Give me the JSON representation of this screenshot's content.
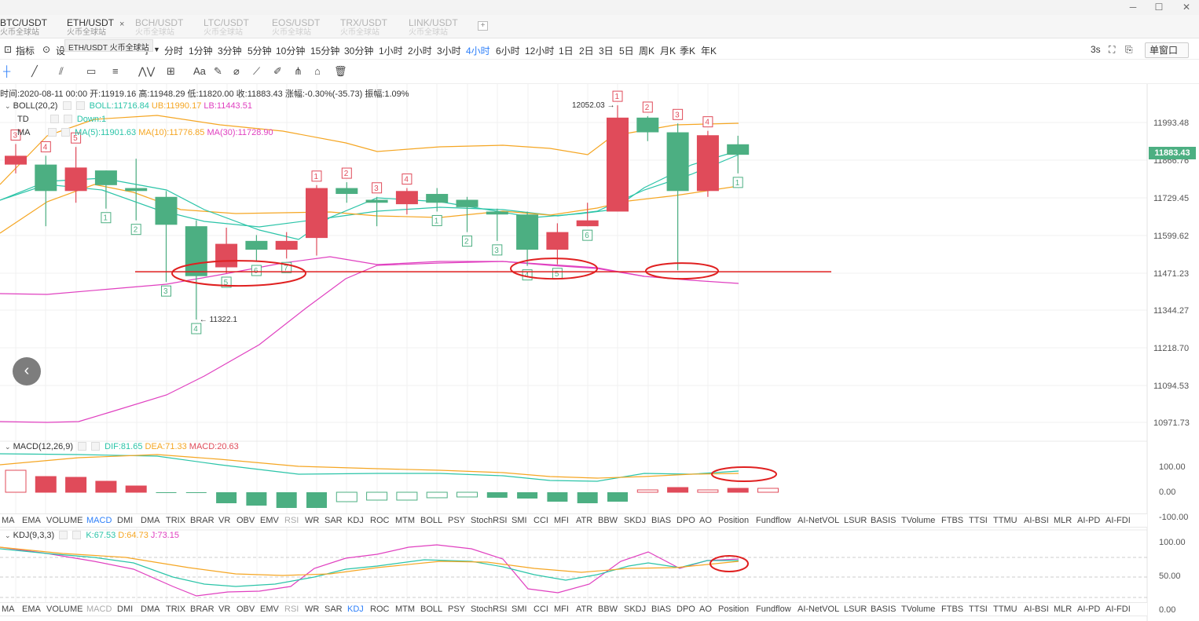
{
  "window": {
    "minimize": "─",
    "maximize": "☐",
    "close": "✕"
  },
  "tabs": [
    {
      "symbol": "BTC/USDT",
      "sub": "火币全球站",
      "dim": false
    },
    {
      "symbol": "ETH/USDT",
      "sub": "火币全球站",
      "dim": false,
      "closable": true
    },
    {
      "symbol": "BCH/USDT",
      "sub": "火币全球站",
      "dim": true
    },
    {
      "symbol": "LTC/USDT",
      "sub": "火币全球站",
      "dim": true
    },
    {
      "symbol": "EOS/USDT",
      "sub": "火币全球站",
      "dim": true
    },
    {
      "symbol": "TRX/USDT",
      "sub": "火币全球站",
      "dim": true
    },
    {
      "symbol": "LINK/USDT",
      "sub": "火币全球站",
      "dim": true
    }
  ],
  "tab_close": "×",
  "tab_add": "+",
  "tooltip": "ETH/USDT 火币全球站",
  "toolbar": {
    "indicator_label": "指标",
    "settings_label": "设",
    "settings_suffix": "]",
    "intervals": [
      "分时",
      "1分钟",
      "3分钟",
      "5分钟",
      "10分钟",
      "15分钟",
      "30分钟",
      "1小时",
      "2小时",
      "3小时",
      "4小时",
      "6小时",
      "12小时",
      "1日",
      "2日",
      "3日",
      "5日",
      "周K",
      "月K",
      "季K",
      "年K"
    ],
    "active_interval": "4小时",
    "refresh": "3s",
    "window_mode": "单窗口"
  },
  "drawing_tools": [
    "crosshair-icon",
    "line-icon",
    "fib-icon",
    "rect-icon",
    "channel-icon",
    "wave-icon",
    "grid-icon",
    "text-icon",
    "brush-icon",
    "eraser-icon",
    "ruler-icon",
    "measure-icon",
    "lock-icon",
    "trash-icon"
  ],
  "info_line": "时间:2020-08-11 00:00  开:11919.16  高:11948.29  低:11820.00  收:11883.43  涨幅:-0.30%(-35.73)  振幅:1.09%",
  "overlays": {
    "boll": {
      "name": "BOLL(20,2)",
      "boll": "BOLL:11716.84",
      "ub": "UB:11990.17",
      "lb": "LB:11443.51"
    },
    "td": {
      "name": "TD",
      "value": "Down:1"
    },
    "ma": {
      "name": "MA",
      "ma5": "MA(5):11901.63",
      "ma10": "MA(10):11776.85",
      "ma30": "MA(30):11728.90"
    }
  },
  "price_axis": [
    "11993.48",
    "11866.76",
    "11729.45",
    "11599.62",
    "11471.23",
    "11344.27",
    "11218.70",
    "11094.53",
    "10971.73"
  ],
  "last_price": "11883.43",
  "annotations": {
    "high": "12052.03",
    "low": "11322.1"
  },
  "macd": {
    "name": "MACD(12,26,9)",
    "dif": "DIF:81.65",
    "dea": "DEA:71.33",
    "macd": "MACD:20.63",
    "axis": [
      "100.00",
      "0.00",
      "-100.00"
    ]
  },
  "kdj": {
    "name": "KDJ(9,3,3)",
    "k": "K:67.53",
    "d": "D:64.73",
    "j": "J:73.15",
    "axis": [
      "100.00",
      "50.00",
      "0.00"
    ]
  },
  "indicator_tabs": [
    "MA",
    "EMA",
    "VOLUME",
    "MACD",
    "DMI",
    "DMA",
    "TRIX",
    "BRAR",
    "VR",
    "OBV",
    "EMV",
    "RSI",
    "WR",
    "SAR",
    "KDJ",
    "ROC",
    "MTM",
    "BOLL",
    "PSY",
    "StochRSI",
    "SMI",
    "CCI",
    "MFI",
    "ATR",
    "BBW",
    "SKDJ",
    "BIAS",
    "DPO",
    "AO",
    "Position",
    "Fundflow",
    "AI-NetVOL",
    "LSUR",
    "BASIS",
    "TVolume",
    "FTBS",
    "TTSI",
    "TTMU",
    "AI-BSI",
    "MLR",
    "AI-PD",
    "AI-FDI"
  ],
  "colors": {
    "up": "#4caf82",
    "down": "#e04b5a",
    "boll": "#f5a623",
    "mid": "#2bc4a8",
    "lb": "#e040c0",
    "accent": "#2d7ff9",
    "support": "#e02020"
  },
  "chart_data": {
    "type": "candlestick",
    "interval": "4小时",
    "candles": [
      {
        "o": 11880,
        "h": 11920,
        "l": 11820,
        "c": 11850,
        "color": "down",
        "td": "3",
        "td_pos": "top"
      },
      {
        "o": 11850,
        "h": 11880,
        "l": 11640,
        "c": 11760,
        "color": "up",
        "td": "4",
        "td_pos": "top"
      },
      {
        "o": 11840,
        "h": 11910,
        "l": 11720,
        "c": 11760,
        "color": "down",
        "td": "5",
        "td_pos": "top"
      },
      {
        "o": 11780,
        "h": 11830,
        "l": 11700,
        "c": 11830,
        "color": "up",
        "td": "1",
        "td_pos": "bottom"
      },
      {
        "o": 11770,
        "h": 11870,
        "l": 11660,
        "c": 11760,
        "color": "up",
        "td": "2",
        "td_pos": "bottom"
      },
      {
        "o": 11740,
        "h": 11760,
        "l": 11450,
        "c": 11645,
        "color": "up",
        "td": "3",
        "td_pos": "bottom"
      },
      {
        "o": 11640,
        "h": 11660,
        "l": 11322,
        "c": 11470,
        "color": "up",
        "td": "4",
        "td_pos": "bottom"
      },
      {
        "o": 11580,
        "h": 11635,
        "l": 11480,
        "c": 11500,
        "color": "down",
        "td": "5",
        "td_pos": "bottom"
      },
      {
        "o": 11560,
        "h": 11610,
        "l": 11520,
        "c": 11590,
        "color": "up",
        "td": "6",
        "td_pos": "bottom"
      },
      {
        "o": 11590,
        "h": 11620,
        "l": 11530,
        "c": 11560,
        "color": "down",
        "td": "7",
        "td_pos": "bottom"
      },
      {
        "o": 11770,
        "h": 11780,
        "l": 11540,
        "c": 11600,
        "color": "down",
        "td": "1",
        "td_pos": "top"
      },
      {
        "o": 11770,
        "h": 11790,
        "l": 11720,
        "c": 11750,
        "color": "up",
        "td": "2",
        "td_pos": "top"
      },
      {
        "o": 11720,
        "h": 11740,
        "l": 11640,
        "c": 11730,
        "color": "up",
        "td": "3",
        "td_pos": "top"
      },
      {
        "o": 11760,
        "h": 11770,
        "l": 11680,
        "c": 11715,
        "color": "down",
        "td": "4",
        "td_pos": "top"
      },
      {
        "o": 11750,
        "h": 11770,
        "l": 11690,
        "c": 11720,
        "color": "up",
        "td": "1",
        "td_pos": "bottom"
      },
      {
        "o": 11730,
        "h": 11740,
        "l": 11620,
        "c": 11705,
        "color": "up",
        "td": "2",
        "td_pos": "bottom"
      },
      {
        "o": 11690,
        "h": 11700,
        "l": 11590,
        "c": 11680,
        "color": "up",
        "td": "3",
        "td_pos": "bottom"
      },
      {
        "o": 11680,
        "h": 11690,
        "l": 11505,
        "c": 11560,
        "color": "up",
        "td": "4",
        "td_pos": "bottom"
      },
      {
        "o": 11620,
        "h": 11650,
        "l": 11510,
        "c": 11560,
        "color": "down",
        "td": "5",
        "td_pos": "bottom"
      },
      {
        "o": 11660,
        "h": 11720,
        "l": 11640,
        "c": 11640,
        "color": "down",
        "td": "6",
        "td_pos": "bottom"
      },
      {
        "o": 12010,
        "h": 12052.03,
        "l": 11690,
        "c": 11690,
        "color": "down",
        "td": "1",
        "td_pos": "top"
      },
      {
        "o": 11960,
        "h": 12015,
        "l": 11930,
        "c": 12010,
        "color": "up",
        "td": "2",
        "td_pos": "top"
      },
      {
        "o": 11960,
        "h": 11990,
        "l": 11490,
        "c": 11760,
        "color": "up",
        "td": "3",
        "td_pos": "top"
      },
      {
        "o": 11950,
        "h": 11965,
        "l": 11740,
        "c": 11760,
        "color": "down",
        "td": "4",
        "td_pos": "top"
      },
      {
        "o": 11919.16,
        "h": 11948.29,
        "l": 11820,
        "c": 11883.43,
        "color": "up",
        "td": "1",
        "td_pos": "bottom"
      }
    ],
    "support_level": 11485,
    "ylim": [
      10900,
      12100
    ]
  }
}
